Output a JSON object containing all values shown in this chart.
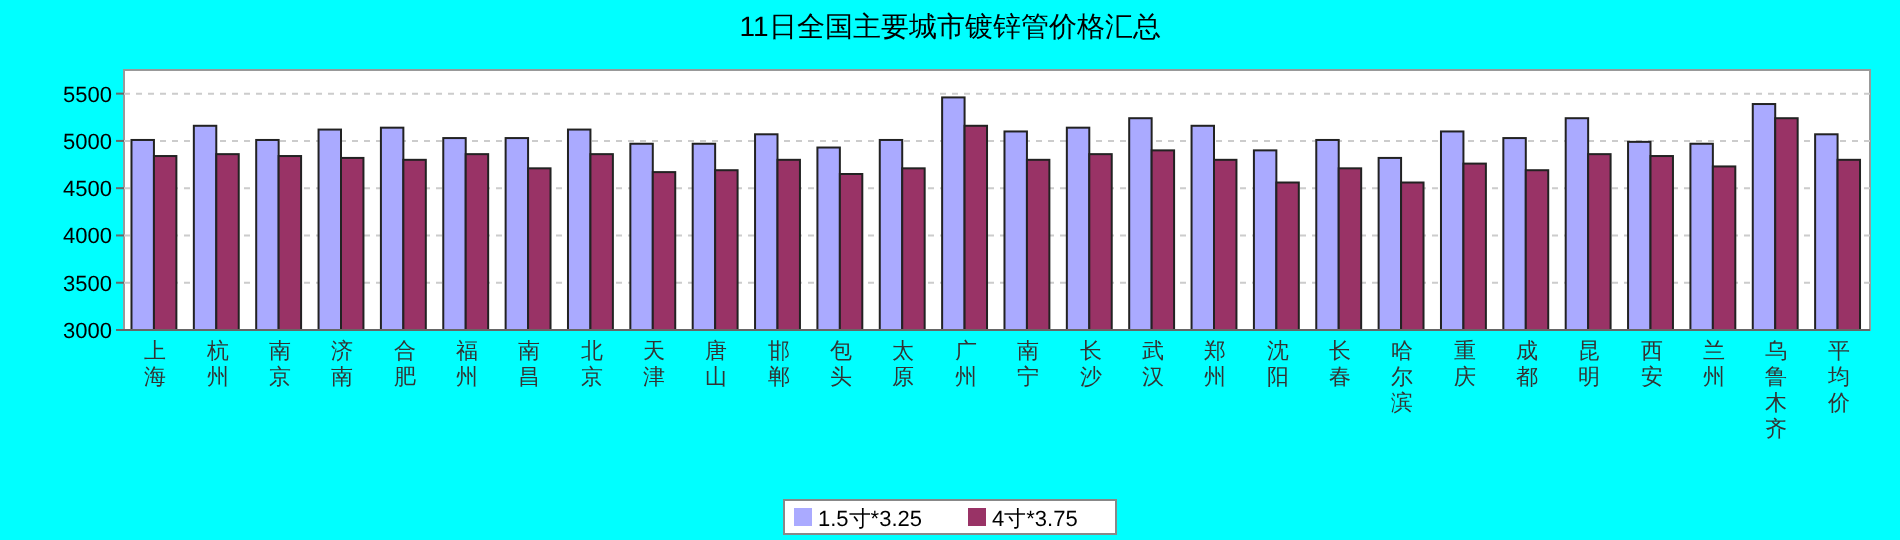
{
  "chart_data": {
    "type": "bar",
    "title": "11日全国主要城市镀锌管价格汇总",
    "categories": [
      "上海",
      "杭州",
      "南京",
      "济南",
      "合肥",
      "福州",
      "南昌",
      "北京",
      "天津",
      "唐山",
      "邯郸",
      "包头",
      "太原",
      "广州",
      "南宁",
      "长沙",
      "武汉",
      "郑州",
      "沈阳",
      "长春",
      "哈尔滨",
      "重庆",
      "成都",
      "昆明",
      "西安",
      "兰州",
      "乌鲁木齐",
      "平均价"
    ],
    "series": [
      {
        "name": "1.5寸*3.25",
        "color": "#aaaaff",
        "values": [
          5010,
          5160,
          5010,
          5120,
          5140,
          5030,
          5030,
          5120,
          4970,
          4970,
          5070,
          4930,
          5010,
          5460,
          5100,
          5140,
          5240,
          5160,
          4900,
          5010,
          4820,
          5100,
          5030,
          5240,
          4990,
          4970,
          5390,
          5070
        ]
      },
      {
        "name": "4寸*3.75",
        "color": "#993366",
        "values": [
          4840,
          4860,
          4840,
          4820,
          4800,
          4860,
          4710,
          4860,
          4670,
          4690,
          4800,
          4650,
          4710,
          5160,
          4800,
          4860,
          4900,
          4800,
          4560,
          4710,
          4560,
          4760,
          4690,
          4860,
          4840,
          4730,
          5240,
          4800
        ]
      }
    ],
    "ylim": [
      3000,
      5750
    ],
    "yticks": [
      3000,
      3500,
      4000,
      4500,
      5000,
      5500
    ],
    "grid": "y",
    "legend": "bottom"
  }
}
